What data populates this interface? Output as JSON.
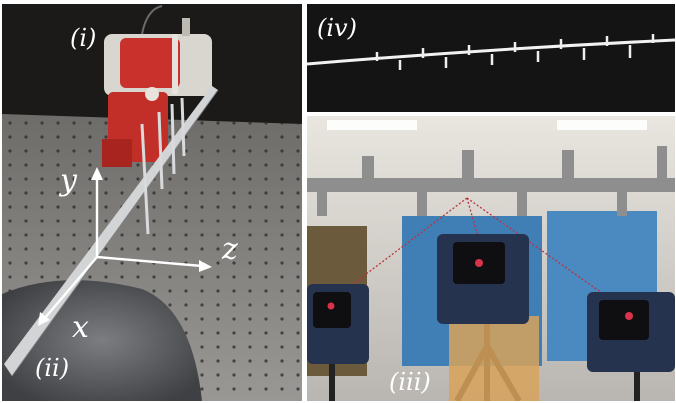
{
  "figure": {
    "panels": [
      {
        "id": "i",
        "label": "(i)"
      },
      {
        "id": "ii",
        "label": "(ii)"
      },
      {
        "id": "iii",
        "label": "(iii)"
      },
      {
        "id": "iv",
        "label": "(iv)"
      }
    ],
    "axes": {
      "x": "x",
      "y": "y",
      "z": "z"
    },
    "colors": {
      "device_red": "#c9312c",
      "camera_blue": "#26334f",
      "laser": "#c0303a",
      "backdrop": "#141414"
    }
  }
}
